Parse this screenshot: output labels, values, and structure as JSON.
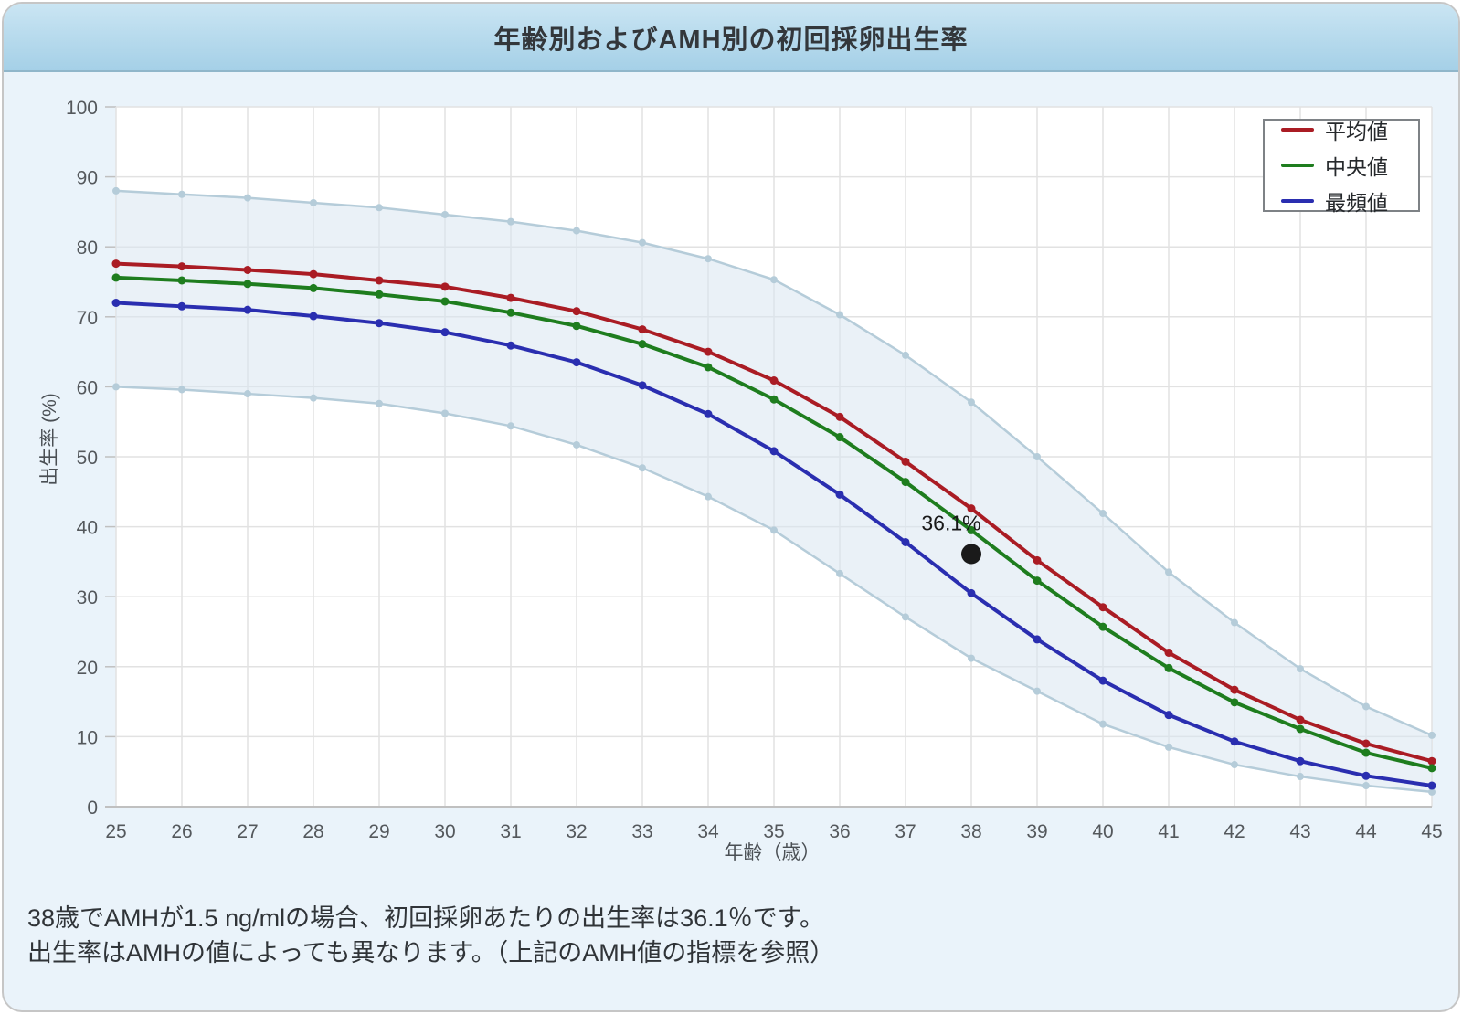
{
  "title": "年齢別およびAMH別の初回採卵出生率",
  "footer": {
    "line1": "38歳でAMHが1.5 ng/mlの場合、初回採卵あたりの出生率は36.1％です。",
    "line2": "出生率はAMHの値によっても異なります。（上記のAMH値の指標を参照）"
  },
  "colors": {
    "container_bg": "#eaf3fa",
    "title_gradient_top": "#cae5f3",
    "title_gradient_bottom": "#a5d0e7",
    "plot_bg": "#ffffff",
    "gridline": "#e2e2e2",
    "axis_line": "#c0c0c0",
    "tick_text": "#54585c",
    "annotation_dot": "#1a1a1a"
  },
  "chart_data": {
    "type": "line",
    "title": "年齢別およびAMH別の初回採卵出生率",
    "xlabel": "年齢（歳）",
    "ylabel": "出生率 (%)",
    "xlim": [
      25,
      45
    ],
    "ylim": [
      0,
      100
    ],
    "y_tick_step": 10,
    "grid": true,
    "legend_position": "top-right",
    "x": [
      25,
      26,
      27,
      28,
      29,
      30,
      31,
      32,
      33,
      34,
      35,
      36,
      37,
      38,
      39,
      40,
      41,
      42,
      43,
      44,
      45
    ],
    "series": [
      {
        "key": "mean",
        "name": "平均値",
        "color": "#aa1c24",
        "values": [
          77.6,
          77.2,
          76.7,
          76.1,
          75.2,
          74.3,
          72.7,
          70.8,
          68.2,
          65.0,
          60.9,
          55.7,
          49.3,
          42.6,
          35.2,
          28.5,
          22.0,
          16.7,
          12.4,
          9.0,
          6.5
        ]
      },
      {
        "key": "median",
        "name": "中央値",
        "color": "#1e7d1e",
        "values": [
          75.6,
          75.2,
          74.7,
          74.1,
          73.2,
          72.2,
          70.6,
          68.7,
          66.1,
          62.8,
          58.2,
          52.8,
          46.4,
          39.5,
          32.3,
          25.7,
          19.8,
          14.9,
          11.1,
          7.7,
          5.5
        ]
      },
      {
        "key": "mode",
        "name": "最頻値",
        "color": "#2a2eb0",
        "values": [
          72.0,
          71.5,
          71.0,
          70.1,
          69.1,
          67.8,
          65.9,
          63.5,
          60.2,
          56.1,
          50.8,
          44.6,
          37.8,
          30.5,
          23.9,
          18.0,
          13.1,
          9.3,
          6.5,
          4.4,
          3.0
        ]
      }
    ],
    "band": {
      "name": "amh-range-band",
      "line_color": "#b5ccd9",
      "fill_color": "#d9e6f1",
      "fill_opacity": 0.55,
      "upper": [
        88.0,
        87.5,
        87.0,
        86.3,
        85.6,
        84.6,
        83.6,
        82.3,
        80.6,
        78.3,
        75.3,
        70.3,
        64.5,
        57.8,
        50.0,
        41.9,
        33.5,
        26.3,
        19.7,
        14.3,
        10.2
      ],
      "lower": [
        60.0,
        59.6,
        59.0,
        58.4,
        57.6,
        56.2,
        54.4,
        51.7,
        48.4,
        44.3,
        39.5,
        33.3,
        27.1,
        21.2,
        16.5,
        11.8,
        8.5,
        6.0,
        4.3,
        3.0,
        2.1
      ]
    },
    "annotation": {
      "age": 38,
      "value": 36.1,
      "label": "36.1%"
    }
  }
}
